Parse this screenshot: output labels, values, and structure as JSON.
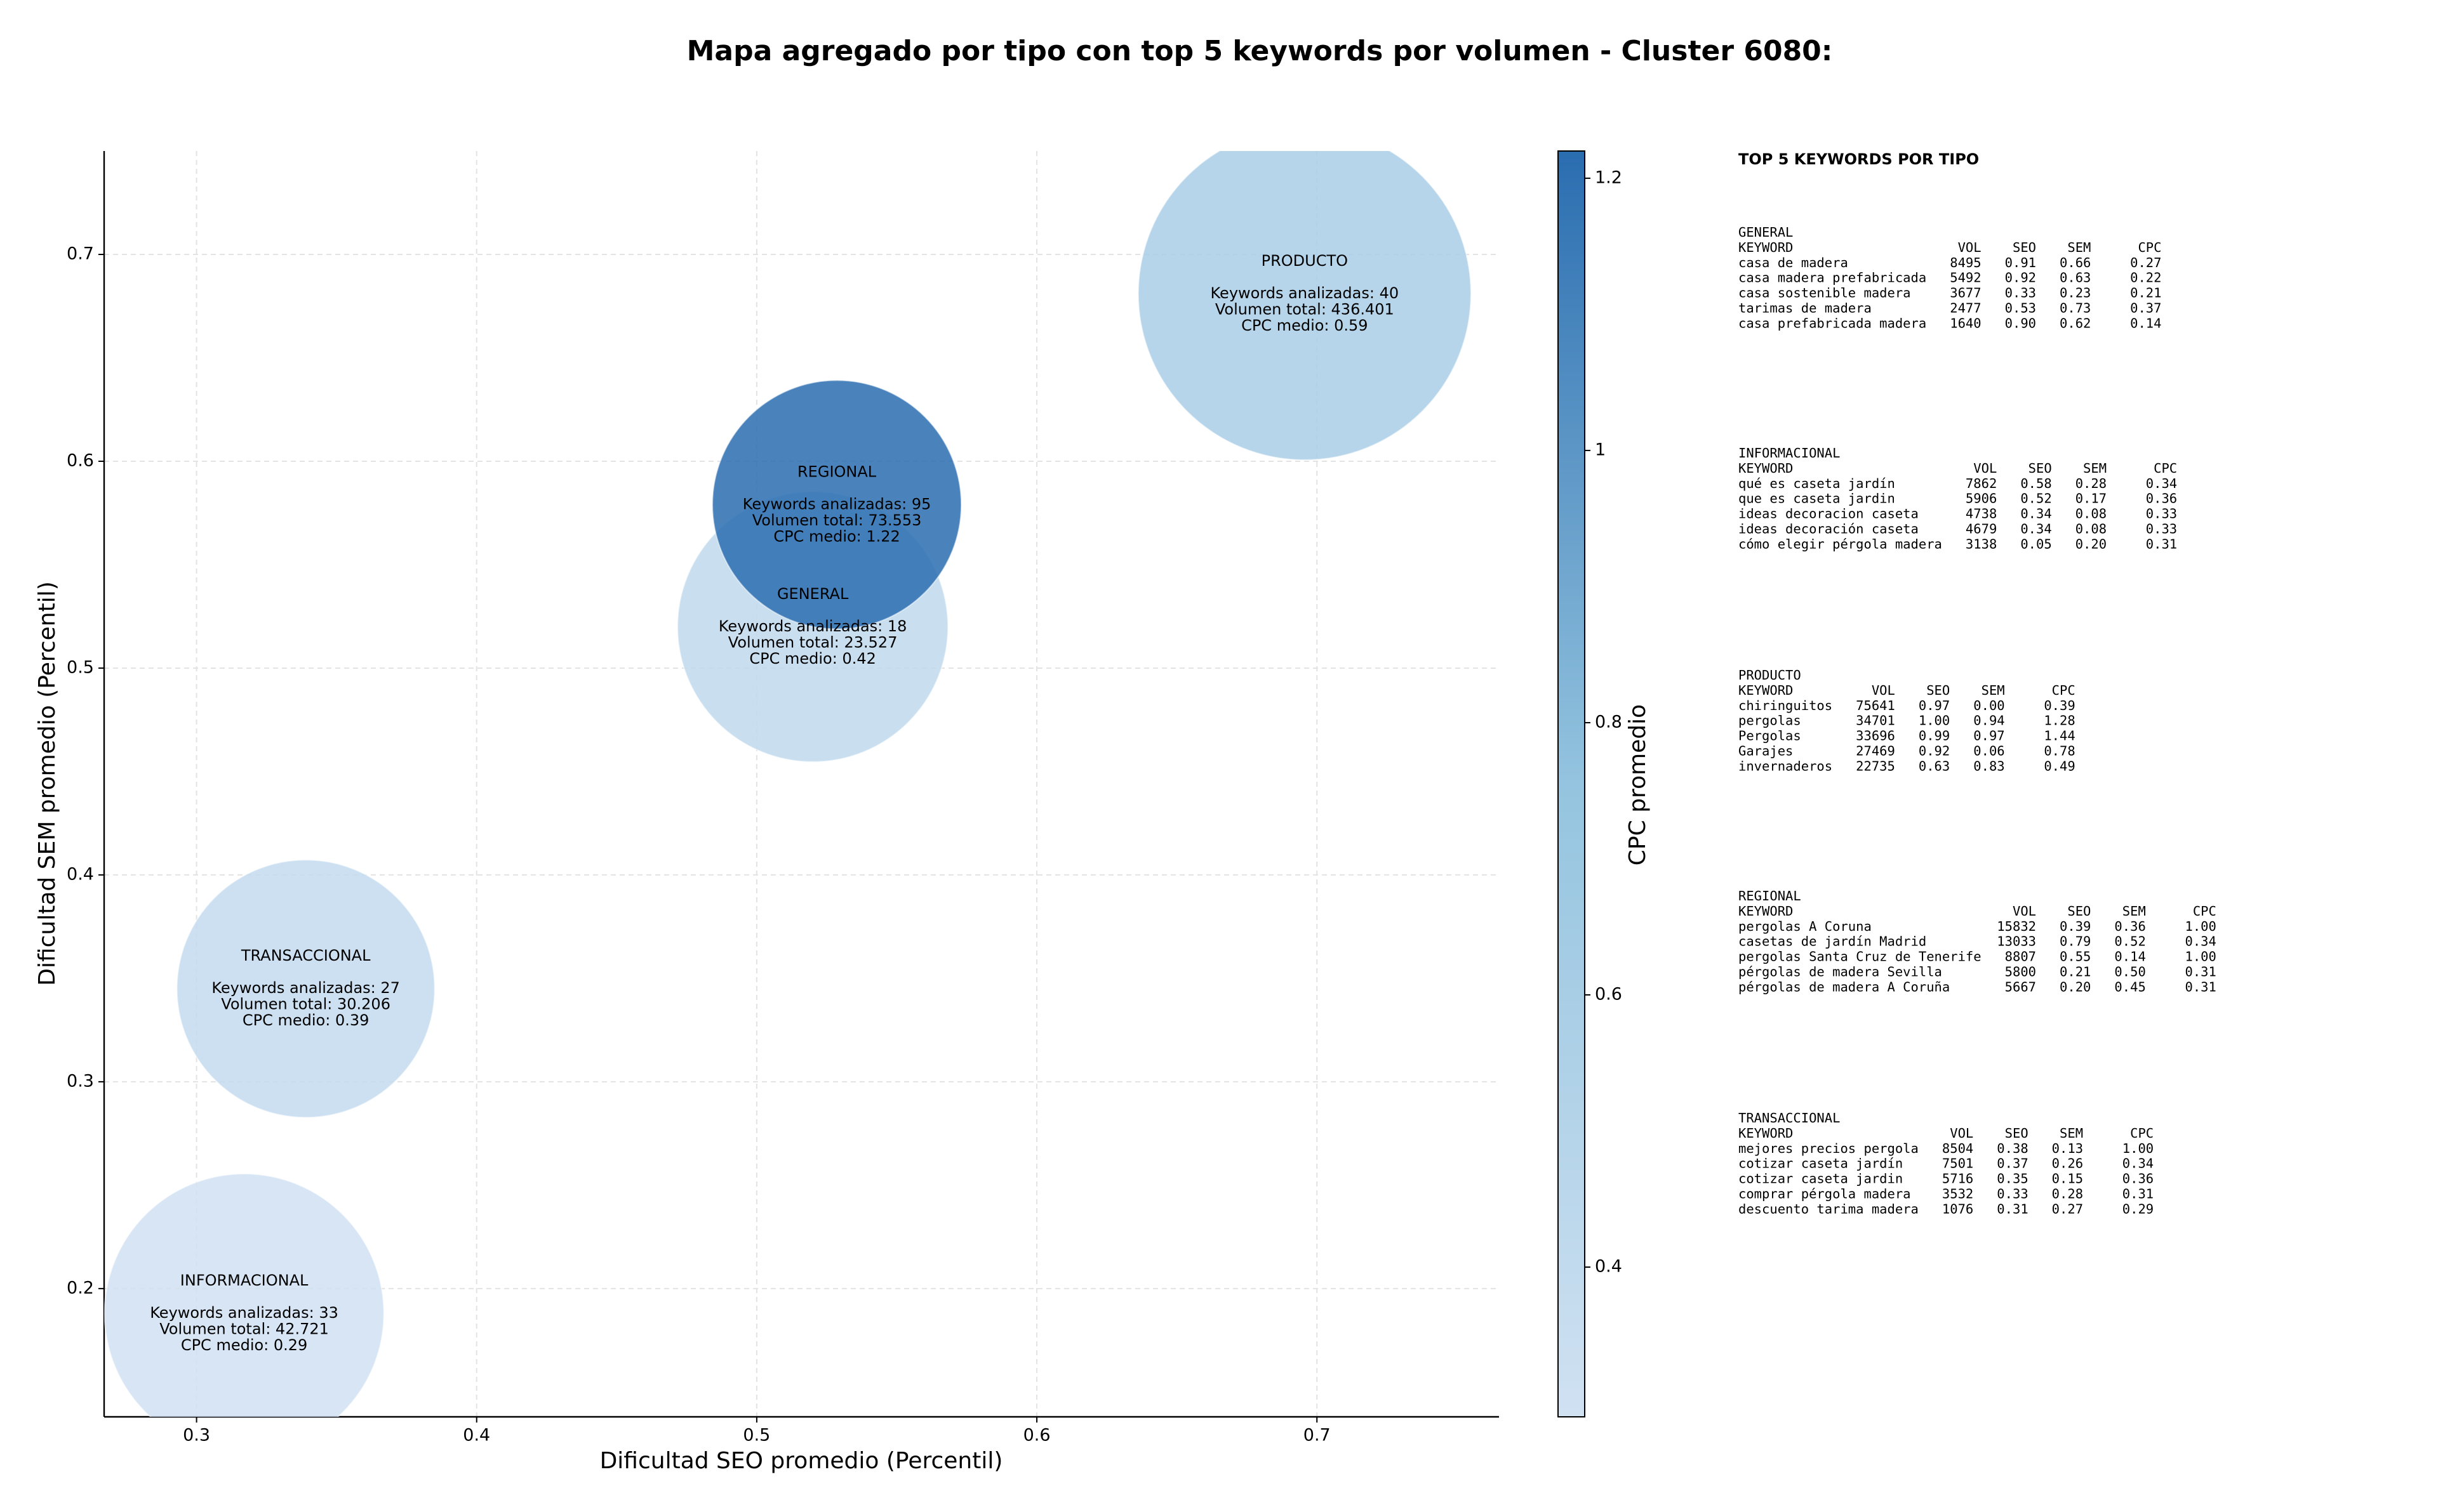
{
  "chart_data": {
    "type": "scatter",
    "title": "Mapa agregado por tipo con top 5 keywords por volumen - Cluster 6080:",
    "x_label": "Dificultad SEO promedio (Percentil)",
    "y_label": "Dificultad SEM promedio (Percentil)",
    "xlim": [
      0.267,
      0.765
    ],
    "ylim": [
      0.138,
      0.75
    ],
    "xticks": [
      0.3,
      0.4,
      0.5,
      0.6,
      0.7
    ],
    "yticks": [
      0.2,
      0.3,
      0.4,
      0.5,
      0.6,
      0.7
    ],
    "grid": true,
    "colorbar": {
      "label": "CPC promedio",
      "lim": [
        0.29,
        1.22
      ],
      "ticks": [
        0.4,
        0.6,
        0.8,
        1.0,
        1.2
      ],
      "colors": [
        "#d0e1f2",
        "#94c4df",
        "#2a6db0"
      ]
    },
    "points": [
      {
        "name": "GENERAL",
        "x": 0.52,
        "y": 0.52,
        "cpc": 0.42,
        "lines": [
          "Keywords analizadas: 18",
          "Volumen total: 23.527",
          "CPC medio: 0.42"
        ]
      },
      {
        "name": "INFORMACIONAL",
        "x": 0.317,
        "y": 0.188,
        "cpc": 0.29,
        "lines": [
          "Keywords analizadas: 33",
          "Volumen total: 42.721",
          "CPC medio: 0.29"
        ]
      },
      {
        "name": "PRODUCTO",
        "x": 0.6956,
        "y": 0.681,
        "cpc": 0.59,
        "lines": [
          "Keywords analizadas: 40",
          "Volumen total: 436.401",
          "CPC medio: 0.59"
        ]
      },
      {
        "name": "REGIONAL",
        "x": 0.5286,
        "y": 0.579,
        "cpc": 1.22,
        "lines": [
          "Keywords analizadas: 95",
          "Volumen total: 73.553",
          "CPC medio: 1.22"
        ]
      },
      {
        "name": "TRANSACCIONAL",
        "x": 0.339,
        "y": 0.345,
        "cpc": 0.39,
        "lines": [
          "Keywords analizadas: 27",
          "Volumen total: 30.206",
          "CPC medio: 0.39"
        ]
      }
    ]
  },
  "keywords_panel": {
    "title": "TOP 5 KEYWORDS POR TIPO",
    "blocks": [
      {
        "name": "GENERAL",
        "lines": [
          "KEYWORD                     VOL    SEO    SEM      CPC",
          "casa de madera             8495   0.91   0.66     0.27",
          "casa madera prefabricada   5492   0.92   0.63     0.22",
          "casa sostenible madera     3677   0.33   0.23     0.21",
          "tarimas de madera          2477   0.53   0.73     0.37",
          "casa prefabricada madera   1640   0.90   0.62     0.14"
        ]
      },
      {
        "name": "INFORMACIONAL",
        "lines": [
          "KEYWORD                       VOL    SEO    SEM      CPC",
          "qué es caseta jardín         7862   0.58   0.28     0.34",
          "que es caseta jardin         5906   0.52   0.17     0.36",
          "ideas decoracion caseta      4738   0.34   0.08     0.33",
          "ideas decoración caseta      4679   0.34   0.08     0.33",
          "cómo elegir pérgola madera   3138   0.05   0.20     0.31"
        ]
      },
      {
        "name": "PRODUCTO",
        "lines": [
          "KEYWORD          VOL    SEO    SEM      CPC",
          "chiringuitos   75641   0.97   0.00     0.39",
          "pergolas       34701   1.00   0.94     1.28",
          "Pergolas       33696   0.99   0.97     1.44",
          "Garajes        27469   0.92   0.06     0.78",
          "invernaderos   22735   0.63   0.83     0.49"
        ]
      },
      {
        "name": "REGIONAL",
        "lines": [
          "KEYWORD                            VOL    SEO    SEM      CPC",
          "pergolas A Coruna                15832   0.39   0.36     1.00",
          "casetas de jardín Madrid         13033   0.79   0.52     0.34",
          "pergolas Santa Cruz de Tenerife   8807   0.55   0.14     1.00",
          "pérgolas de madera Sevilla        5800   0.21   0.50     0.31",
          "pérgolas de madera A Coruña       5667   0.20   0.45     0.31"
        ]
      },
      {
        "name": "TRANSACCIONAL",
        "lines": [
          "KEYWORD                    VOL    SEO    SEM      CPC",
          "mejores precios pergola   8504   0.38   0.13     1.00",
          "cotizar caseta jardín     7501   0.37   0.26     0.34",
          "cotizar caseta jardin     5716   0.35   0.15     0.36",
          "comprar pérgola madera    3532   0.33   0.28     0.31",
          "descuento tarima madera   1076   0.31   0.27     0.29"
        ]
      }
    ]
  }
}
